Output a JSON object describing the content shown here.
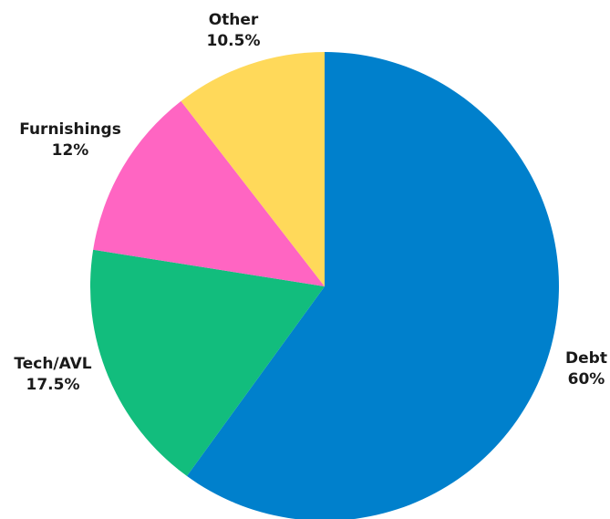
{
  "chart_data": {
    "type": "pie",
    "title": "",
    "start_angle_deg": 0,
    "direction": "clockwise",
    "slices": [
      {
        "name": "Debt",
        "label": "Debt",
        "value_label": "60%",
        "value": 60,
        "color": "#0080CC"
      },
      {
        "name": "Tech/AVL",
        "label": "Tech/AVL",
        "value_label": "17.5%",
        "value": 17.5,
        "color": "#12BD7D"
      },
      {
        "name": "Furnishings",
        "label": "Furnishings",
        "value_label": "12%",
        "value": 12,
        "color": "#FF65C2"
      },
      {
        "name": "Other",
        "label": "Other",
        "value_label": "10.5%",
        "value": 10.5,
        "color": "#FFD95A"
      }
    ]
  }
}
